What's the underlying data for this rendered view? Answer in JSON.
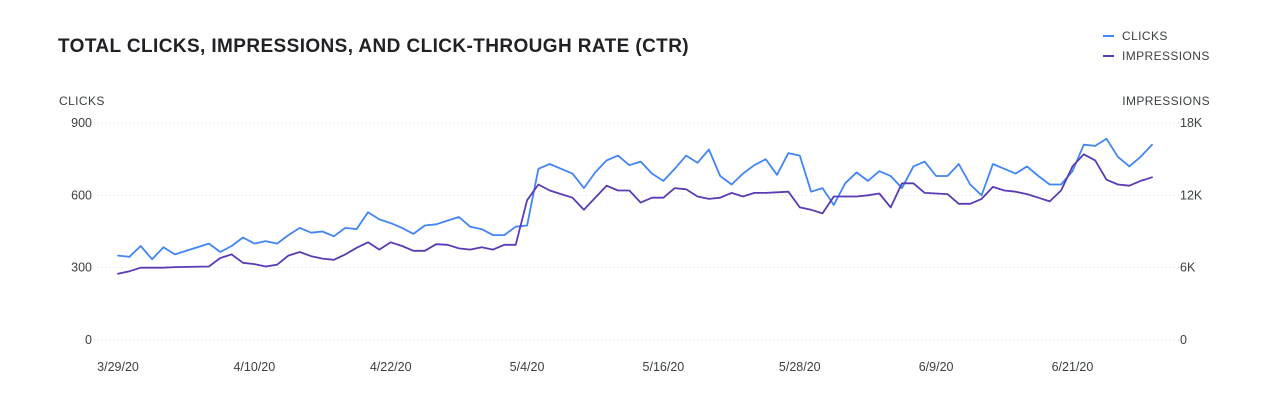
{
  "chart_data": {
    "type": "line",
    "title": "TOTAL CLICKS, IMPRESSIONS, AND CLICK-THROUGH RATE (CTR)",
    "left_axis_label": "CLICKS",
    "right_axis_label": "IMPRESSIONS",
    "x_tick_labels": [
      "3/29/20",
      "4/10/20",
      "4/22/20",
      "5/4/20",
      "5/16/20",
      "5/28/20",
      "6/9/20",
      "6/21/20"
    ],
    "x_range": [
      0,
      91
    ],
    "y_left_range": [
      0,
      900
    ],
    "y_left_ticks": [
      "0",
      "300",
      "600",
      "900"
    ],
    "y_right_range": [
      0,
      18000
    ],
    "y_right_ticks": [
      "0",
      "6K",
      "12K",
      "18K"
    ],
    "legend_position": "top-right",
    "grid": "horizontal dotted",
    "series": [
      {
        "name": "CLICKS",
        "axis": "left",
        "color": "#4285f4",
        "x": [
          0,
          1,
          2,
          3,
          4,
          5,
          8,
          9,
          10,
          11,
          12,
          13,
          14,
          15,
          16,
          17,
          18,
          19,
          20,
          21,
          22,
          23,
          24,
          25,
          26,
          27,
          28,
          29,
          30,
          31,
          32,
          33,
          34,
          35,
          36,
          37,
          38,
          39,
          40,
          41,
          42,
          43,
          44,
          45,
          46,
          47,
          48,
          49,
          50,
          51,
          52,
          53,
          54,
          55,
          56,
          57,
          58,
          59,
          60,
          61,
          62,
          63,
          64,
          65,
          66,
          67,
          68,
          69,
          70,
          71,
          72,
          73,
          74,
          75,
          76,
          77,
          78,
          79,
          80,
          81,
          82,
          83,
          84,
          85,
          86,
          87,
          88,
          89,
          90,
          91
        ],
        "values": [
          350,
          345,
          390,
          335,
          385,
          355,
          400,
          365,
          390,
          425,
          400,
          410,
          400,
          435,
          465,
          445,
          450,
          430,
          465,
          460,
          530,
          500,
          485,
          465,
          440,
          475,
          480,
          495,
          510,
          470,
          460,
          435,
          435,
          470,
          475,
          710,
          730,
          710,
          690,
          630,
          695,
          745,
          765,
          725,
          740,
          690,
          660,
          710,
          765,
          735,
          790,
          680,
          645,
          690,
          725,
          750,
          685,
          775,
          765,
          615,
          630,
          560,
          650,
          695,
          660,
          700,
          680,
          630,
          720,
          740,
          680,
          680,
          730,
          645,
          600,
          730,
          710,
          690,
          720,
          680,
          645,
          645,
          700,
          810,
          805,
          835,
          760,
          720,
          760,
          810
        ]
      },
      {
        "name": "IMPRESSIONS",
        "axis": "right",
        "color": "#5b3bb3",
        "x": [
          0,
          1,
          2,
          3,
          4,
          5,
          8,
          9,
          10,
          11,
          12,
          13,
          14,
          15,
          16,
          17,
          18,
          19,
          20,
          21,
          22,
          23,
          24,
          25,
          26,
          27,
          28,
          29,
          30,
          31,
          32,
          33,
          34,
          35,
          36,
          37,
          38,
          39,
          40,
          41,
          42,
          43,
          44,
          45,
          46,
          47,
          48,
          49,
          50,
          51,
          52,
          53,
          54,
          55,
          56,
          57,
          58,
          59,
          60,
          61,
          62,
          63,
          64,
          65,
          66,
          67,
          68,
          69,
          70,
          71,
          72,
          73,
          74,
          75,
          76,
          77,
          78,
          79,
          80,
          81,
          82,
          83,
          84,
          85,
          86,
          87,
          88,
          89,
          90,
          91
        ],
        "values": [
          5500,
          5700,
          6000,
          6000,
          6000,
          6050,
          6100,
          6800,
          7100,
          6400,
          6300,
          6100,
          6250,
          7000,
          7300,
          6950,
          6750,
          6650,
          7100,
          7650,
          8100,
          7500,
          8100,
          7800,
          7400,
          7400,
          7950,
          7900,
          7600,
          7500,
          7700,
          7500,
          7900,
          7900,
          11600,
          12900,
          12400,
          12100,
          11800,
          10800,
          11800,
          12800,
          12400,
          12400,
          11400,
          11800,
          11800,
          12600,
          12500,
          11900,
          11700,
          11800,
          12200,
          11900,
          12200,
          12200,
          12250,
          12300,
          11000,
          10800,
          10500,
          11900,
          11900,
          11900,
          12000,
          12150,
          11000,
          13000,
          13000,
          12200,
          12150,
          12100,
          11300,
          11300,
          11700,
          12700,
          12400,
          12300,
          12100,
          11800,
          11500,
          12400,
          14400,
          15400,
          14900,
          13300,
          12900,
          12800,
          13200,
          13500
        ]
      }
    ]
  }
}
